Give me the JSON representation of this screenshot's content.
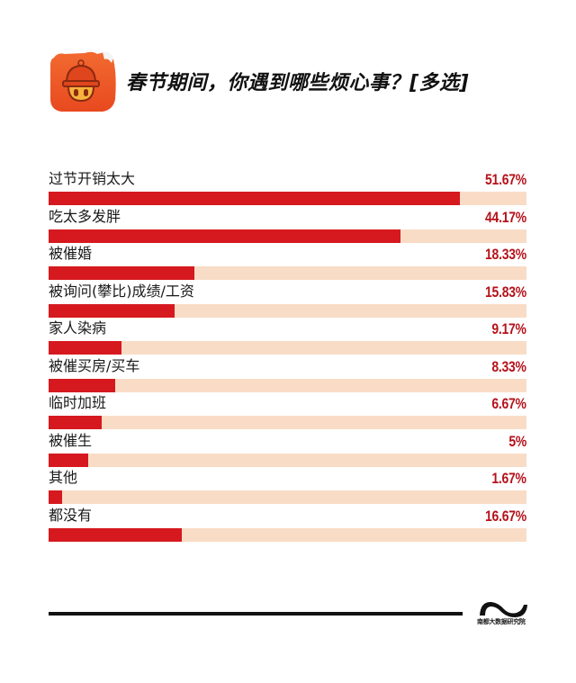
{
  "header": {
    "icon": "helmet-mascot-app-icon",
    "title": "春节期间，你遇到哪些烦心事？[多选]"
  },
  "colors": {
    "bar": "#d6191f",
    "track": "#f9dcc6",
    "value_text": "#b5121b",
    "icon_orange": "#f05a28"
  },
  "chart_data": {
    "type": "bar",
    "orientation": "horizontal",
    "title": "春节期间，你遇到哪些烦心事？[多选]",
    "xlabel": "",
    "ylabel": "",
    "xlim": [
      0,
      60
    ],
    "grid": false,
    "legend": null,
    "categories": [
      "过节开销太大",
      "吃太多发胖",
      "被催婚",
      "被询问(攀比)成绩/工资",
      "家人染病",
      "被催买房/买车",
      "临时加班",
      "被催生",
      "其他",
      "都没有"
    ],
    "values": [
      51.67,
      44.17,
      18.33,
      15.83,
      9.17,
      8.33,
      6.67,
      5,
      1.67,
      16.67
    ],
    "value_labels": [
      "51.67%",
      "44.17%",
      "18.33%",
      "15.83%",
      "9.17%",
      "8.33%",
      "6.67%",
      "5%",
      "1.67%",
      "16.67%"
    ]
  },
  "footer": {
    "logo_icon": "wave-logo-icon",
    "source": "南都大数据研究院"
  }
}
